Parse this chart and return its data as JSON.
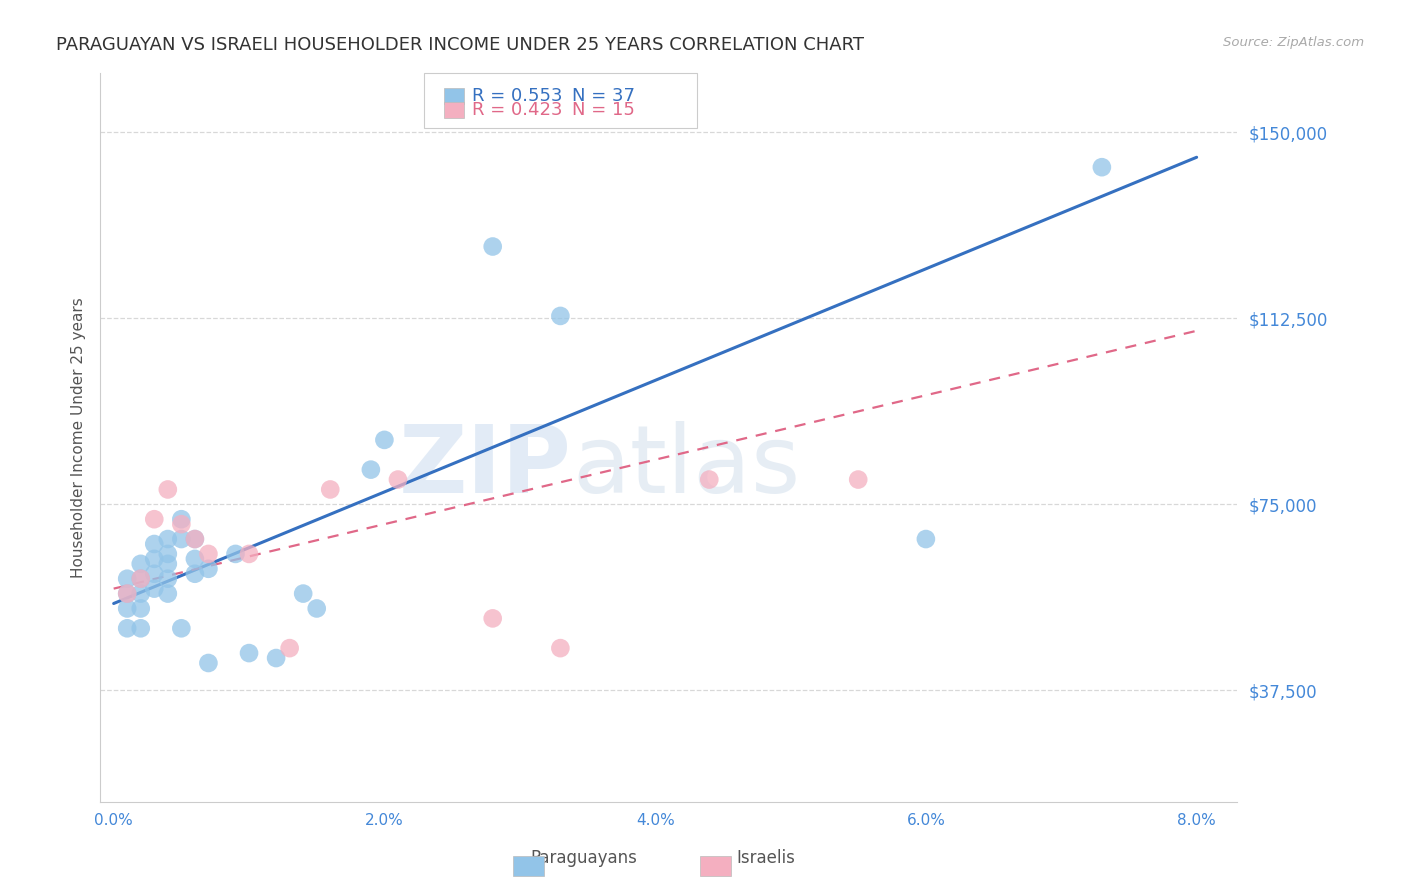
{
  "title": "PARAGUAYAN VS ISRAELI HOUSEHOLDER INCOME UNDER 25 YEARS CORRELATION CHART",
  "source": "Source: ZipAtlas.com",
  "ylabel": "Householder Income Under 25 years",
  "xlabel_ticks": [
    "0.0%",
    "2.0%",
    "4.0%",
    "6.0%",
    "8.0%"
  ],
  "xlabel_tick_vals": [
    0.0,
    0.02,
    0.04,
    0.06,
    0.08
  ],
  "ytick_labels": [
    "$37,500",
    "$75,000",
    "$112,500",
    "$150,000"
  ],
  "ytick_vals": [
    37500,
    75000,
    112500,
    150000
  ],
  "ylim": [
    15000,
    162000
  ],
  "xlim": [
    -0.001,
    0.083
  ],
  "paraguayan_x": [
    0.001,
    0.001,
    0.001,
    0.001,
    0.002,
    0.002,
    0.002,
    0.002,
    0.002,
    0.003,
    0.003,
    0.003,
    0.003,
    0.004,
    0.004,
    0.004,
    0.004,
    0.004,
    0.005,
    0.005,
    0.005,
    0.006,
    0.006,
    0.006,
    0.007,
    0.007,
    0.009,
    0.01,
    0.012,
    0.014,
    0.015,
    0.019,
    0.02,
    0.028,
    0.033,
    0.06,
    0.073
  ],
  "paraguayan_y": [
    60000,
    57000,
    54000,
    50000,
    63000,
    60000,
    57000,
    54000,
    50000,
    67000,
    64000,
    61000,
    58000,
    68000,
    65000,
    63000,
    60000,
    57000,
    72000,
    68000,
    50000,
    68000,
    64000,
    61000,
    62000,
    43000,
    65000,
    45000,
    44000,
    57000,
    54000,
    82000,
    88000,
    127000,
    113000,
    68000,
    143000
  ],
  "israeli_x": [
    0.001,
    0.002,
    0.003,
    0.004,
    0.005,
    0.006,
    0.007,
    0.01,
    0.013,
    0.016,
    0.021,
    0.028,
    0.033,
    0.044,
    0.055
  ],
  "israeli_y": [
    57000,
    60000,
    72000,
    78000,
    71000,
    68000,
    65000,
    65000,
    46000,
    78000,
    80000,
    52000,
    46000,
    80000,
    80000
  ],
  "paraguayan_color": "#92c4e8",
  "paraguayan_line_color": "#3570c0",
  "israeli_color": "#f4afc0",
  "israeli_line_color": "#e06888",
  "r_paraguayan": 0.553,
  "n_paraguayan": 37,
  "r_israeli": 0.423,
  "n_israeli": 15,
  "watermark_zip": "ZIP",
  "watermark_atlas": "atlas",
  "title_fontsize": 13,
  "axis_color": "#4488d8",
  "background_color": "#ffffff",
  "grid_color": "#d8d8d8",
  "blue_line_y0": 55000,
  "blue_line_y1": 145000,
  "pink_line_y0": 58000,
  "pink_line_y1": 110000
}
